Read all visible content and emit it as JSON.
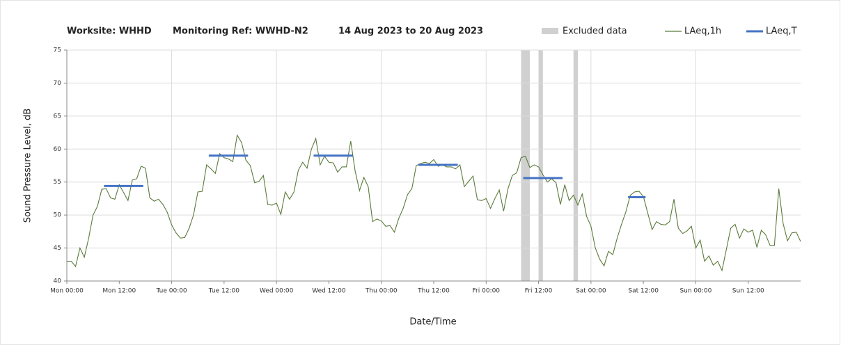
{
  "chart_data": {
    "type": "line",
    "title": [
      "Worksite: WHHD",
      "Monitoring Ref: WWHD-N2",
      "14 Aug 2023 to 20 Aug 2023"
    ],
    "xlabel": "Date/Time",
    "ylabel": "Sound Pressure Level, dB",
    "xlim": [
      0,
      168
    ],
    "ylim": [
      40,
      75
    ],
    "yticks": [
      40,
      45,
      50,
      55,
      60,
      65,
      70,
      75
    ],
    "xticks": [
      {
        "value": 0,
        "label": "Mon 00:00"
      },
      {
        "value": 12,
        "label": "Mon 12:00"
      },
      {
        "value": 24,
        "label": "Tue 00:00"
      },
      {
        "value": 36,
        "label": "Tue 12:00"
      },
      {
        "value": 48,
        "label": "Wed 00:00"
      },
      {
        "value": 60,
        "label": "Wed 12:00"
      },
      {
        "value": 72,
        "label": "Thu 00:00"
      },
      {
        "value": 84,
        "label": "Thu 12:00"
      },
      {
        "value": 96,
        "label": "Fri 00:00"
      },
      {
        "value": 108,
        "label": "Fri 12:00"
      },
      {
        "value": 120,
        "label": "Sat 00:00"
      },
      {
        "value": 132,
        "label": "Sat 12:00"
      },
      {
        "value": 144,
        "label": "Sun 00:00"
      },
      {
        "value": 156,
        "label": "Sun 12:00"
      }
    ],
    "grid": true,
    "excluded": {
      "name": "Excluded data",
      "color": "#d0d0d0",
      "ranges": [
        [
          104,
          106
        ],
        [
          108,
          109
        ],
        [
          116,
          117
        ]
      ]
    },
    "x": [
      0,
      1,
      2,
      3,
      4,
      5,
      6,
      7,
      8,
      9,
      10,
      11,
      12,
      13,
      14,
      15,
      16,
      17,
      18,
      19,
      20,
      21,
      22,
      23,
      24,
      25,
      26,
      27,
      28,
      29,
      30,
      31,
      32,
      33,
      34,
      35,
      36,
      37,
      38,
      39,
      40,
      41,
      42,
      43,
      44,
      45,
      46,
      47,
      48,
      49,
      50,
      51,
      52,
      53,
      54,
      55,
      56,
      57,
      58,
      59,
      60,
      61,
      62,
      63,
      64,
      65,
      66,
      67,
      68,
      69,
      70,
      71,
      72,
      73,
      74,
      75,
      76,
      77,
      78,
      79,
      80,
      81,
      82,
      83,
      84,
      85,
      86,
      87,
      88,
      89,
      90,
      91,
      92,
      93,
      94,
      95,
      96,
      97,
      98,
      99,
      100,
      101,
      102,
      103,
      104,
      105,
      106,
      107,
      108,
      109,
      110,
      111,
      112,
      113,
      114,
      115,
      116,
      117,
      118,
      119,
      120,
      121,
      122,
      123,
      124,
      125,
      126,
      127,
      128,
      129,
      130,
      131,
      132,
      133,
      134,
      135,
      136,
      137,
      138,
      139,
      140,
      141,
      142,
      143,
      144,
      145,
      146,
      147,
      148,
      149,
      150,
      151,
      152,
      153,
      154,
      155,
      156,
      157,
      158,
      159,
      160,
      161,
      162,
      163,
      164,
      165,
      166,
      167,
      168
    ],
    "series": [
      {
        "name": "LAeq,1h",
        "color": "#5b7a3a",
        "values": [
          43.0,
          43.0,
          42.2,
          45.0,
          43.6,
          46.5,
          50.0,
          51.3,
          53.9,
          54.0,
          52.6,
          52.4,
          54.6,
          53.4,
          52.2,
          55.3,
          55.5,
          57.4,
          57.1,
          52.6,
          52.1,
          52.4,
          51.6,
          50.4,
          48.5,
          47.3,
          46.5,
          46.6,
          48.0,
          50.0,
          53.5,
          53.6,
          57.6,
          57.0,
          56.3,
          59.3,
          58.7,
          58.5,
          58.1,
          62.1,
          61.0,
          58.3,
          57.5,
          54.9,
          55.1,
          56.0,
          51.6,
          51.5,
          51.8,
          50.1,
          53.5,
          52.4,
          53.5,
          56.8,
          58.0,
          57.1,
          60.0,
          61.6,
          57.6,
          58.9,
          58.0,
          57.9,
          56.5,
          57.3,
          57.3,
          61.2,
          56.7,
          53.7,
          55.7,
          54.3,
          49.0,
          49.4,
          49.1,
          48.3,
          48.4,
          47.4,
          49.5,
          51.0,
          53.1,
          54.0,
          57.5,
          57.8,
          58.0,
          57.8,
          58.4,
          57.4,
          57.6,
          57.3,
          57.3,
          57.0,
          57.6,
          54.3,
          55.1,
          55.9,
          52.3,
          52.2,
          52.5,
          51.0,
          52.5,
          53.8,
          50.6,
          54.0,
          56.0,
          56.4,
          58.7,
          58.9,
          57.2,
          57.6,
          57.3,
          56.1,
          55.0,
          55.5,
          54.9,
          51.6,
          54.6,
          52.2,
          53.0,
          51.5,
          53.2,
          49.8,
          48.3,
          45.0,
          43.3,
          42.3,
          44.5,
          44.0,
          46.5,
          48.6,
          50.5,
          53.0,
          53.5,
          53.6,
          52.8,
          50.3,
          47.8,
          49.0,
          48.6,
          48.5,
          49.0,
          52.4,
          48.0,
          47.2,
          47.6,
          48.3,
          45.0,
          46.2,
          43.0,
          43.8,
          42.4,
          43.0,
          41.6,
          44.8,
          48.0,
          48.6,
          46.5,
          47.9,
          47.4,
          47.7,
          45.1,
          47.7,
          47.0,
          45.4,
          45.4,
          54.0,
          48.7,
          46.1,
          47.3,
          47.4,
          46.0
        ]
      },
      {
        "name": "LAeq,T",
        "color": "#4472c4",
        "segments": [
          {
            "start": 8.5,
            "end": 17.5,
            "value": 54.4
          },
          {
            "start": 32.5,
            "end": 41.5,
            "value": 59.0
          },
          {
            "start": 56.5,
            "end": 65.5,
            "value": 59.0
          },
          {
            "start": 80.5,
            "end": 89.5,
            "value": 57.6
          },
          {
            "start": 104.5,
            "end": 113.5,
            "value": 55.6
          },
          {
            "start": 128.5,
            "end": 132.5,
            "value": 52.7
          }
        ]
      }
    ]
  }
}
